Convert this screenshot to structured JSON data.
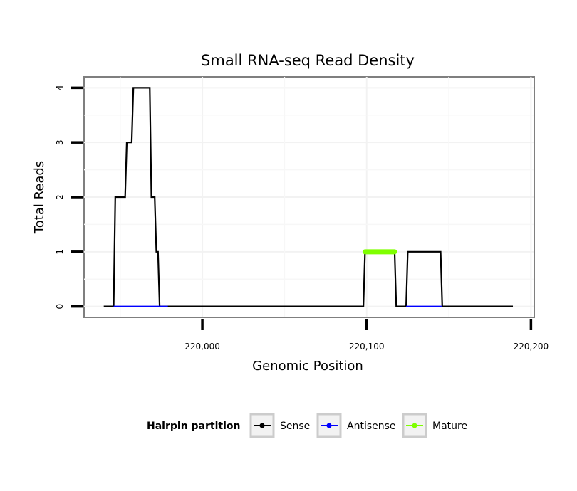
{
  "chart_data": {
    "type": "line",
    "title": "Small RNA-seq Read Density",
    "xlabel": "Genomic Position",
    "ylabel": "Total Reads",
    "xlim": [
      219928,
      220202
    ],
    "ylim": [
      -0.2,
      4.2
    ],
    "x_ticks": [
      220000,
      220100,
      220200
    ],
    "x_tick_labels": [
      "220,000",
      "220,100",
      "220,200"
    ],
    "y_ticks": [
      0,
      1,
      2,
      3,
      4
    ],
    "y_tick_labels": [
      "0",
      "1",
      "2",
      "3",
      "4"
    ],
    "grid": true,
    "legend_position": "bottom",
    "legend_title": "Hairpin partition",
    "series": [
      {
        "name": "Sense",
        "color": "#000000",
        "x": [
          219940,
          219946,
          219947,
          219953,
          219954,
          219957,
          219958,
          219968,
          219969,
          219971,
          219972,
          219973,
          219974,
          219978,
          220098,
          220099,
          220117,
          220118,
          220124,
          220125,
          220145,
          220146,
          220189
        ],
        "y": [
          0,
          0,
          2,
          2,
          3,
          3,
          4,
          4,
          2,
          2,
          1,
          1,
          0,
          0,
          0,
          1,
          1,
          0,
          0,
          1,
          1,
          0,
          0
        ]
      },
      {
        "name": "Antisense",
        "color": "#0000ff",
        "x": [
          219946,
          219979,
          220124,
          220146
        ],
        "y": [
          0,
          0,
          0,
          0
        ],
        "segments": [
          [
            0,
            1
          ],
          [
            2,
            3
          ]
        ]
      },
      {
        "name": "Mature",
        "color": "#7fff00",
        "x": [
          220099,
          220117
        ],
        "y": [
          1,
          1
        ]
      }
    ]
  }
}
